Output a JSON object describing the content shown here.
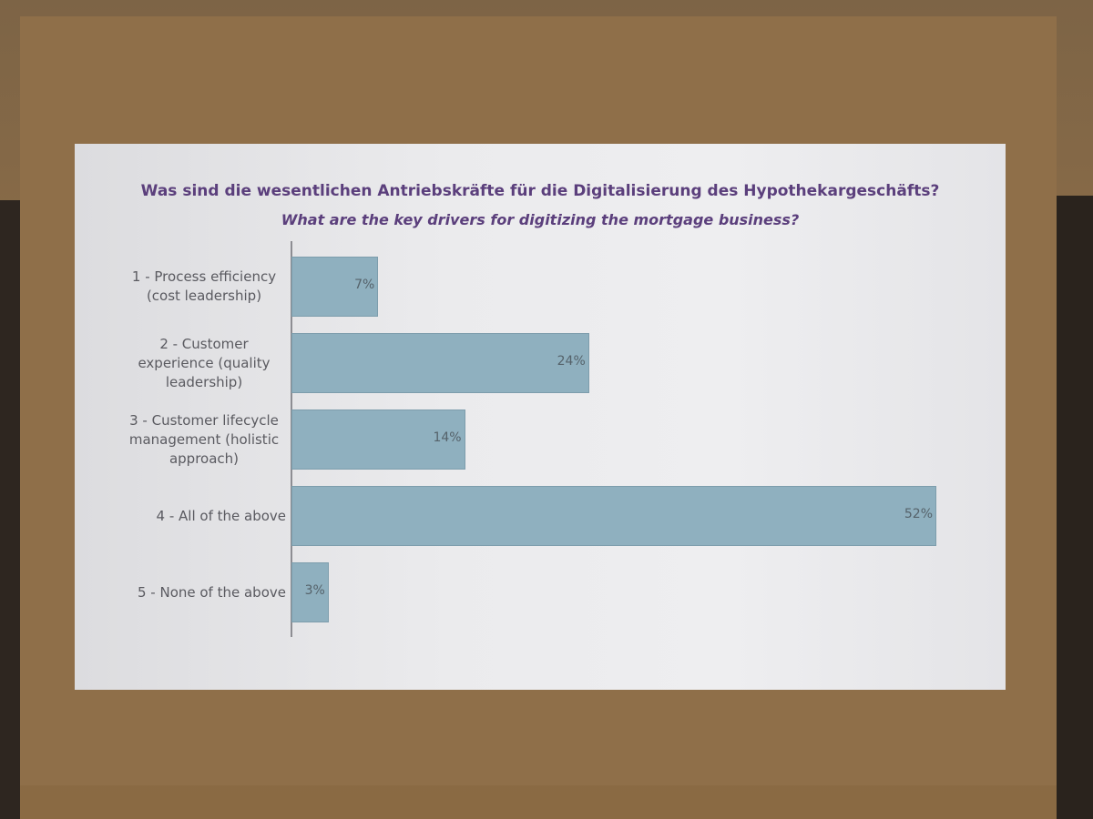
{
  "chart_data": {
    "type": "bar",
    "orientation": "horizontal",
    "title": "Was sind die wesentlichen Antriebskräfte für die Digitalisierung des Hypothekargeschäfts?",
    "subtitle": "What are the key drivers for digitizing the mortgage business?",
    "categories": [
      "1 - Process efficiency (cost leadership)",
      "2 - Customer experience (quality leadership)",
      "3 - Customer lifecycle management (holistic approach)",
      "4 - All of the above",
      "5 - None of the above"
    ],
    "values": [
      7,
      24,
      14,
      52,
      3
    ],
    "value_labels": [
      "7%",
      "24%",
      "14%",
      "52%",
      "3%"
    ],
    "color": "#8fb0bf",
    "xlim": [
      0,
      52
    ]
  }
}
